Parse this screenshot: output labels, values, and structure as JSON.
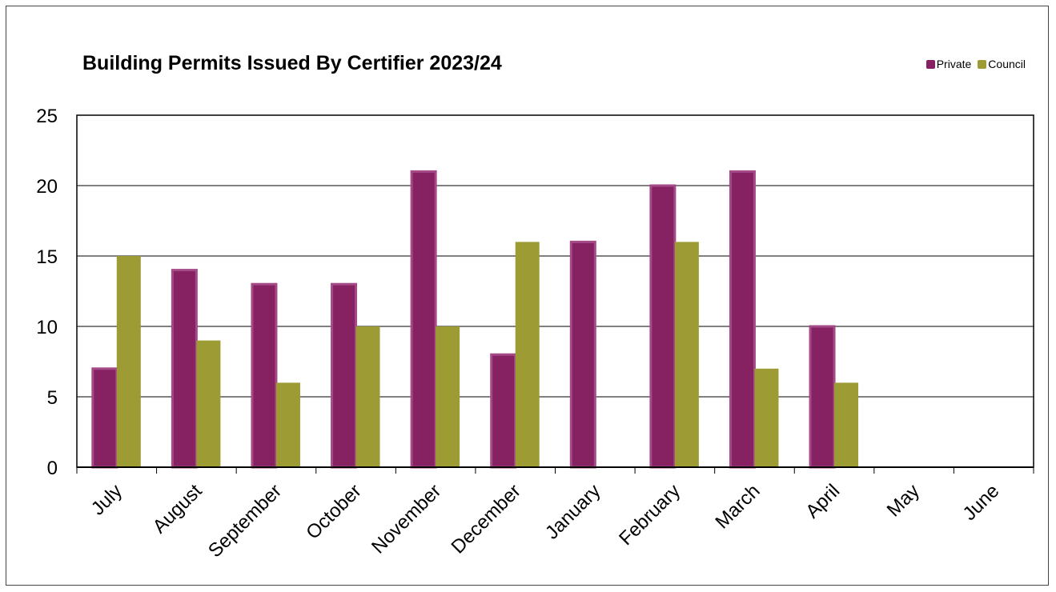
{
  "chart_data": {
    "type": "bar",
    "title": "Building Permits Issued By Certifier 2023/24",
    "xlabel": "",
    "ylabel": "",
    "categories": [
      "July",
      "August",
      "September",
      "October",
      "November",
      "December",
      "January",
      "February",
      "March",
      "April",
      "May",
      "June"
    ],
    "series": [
      {
        "name": "Private",
        "color": "#862262",
        "values": [
          7,
          14,
          13,
          13,
          21,
          8,
          16,
          20,
          21,
          10,
          0,
          0
        ]
      },
      {
        "name": "Council",
        "color": "#9C9B34",
        "values": [
          15,
          9,
          6,
          10,
          10,
          16,
          0,
          16,
          7,
          6,
          0,
          0
        ]
      }
    ],
    "ylim": [
      0,
      25
    ],
    "yticks": [
      0,
      5,
      10,
      15,
      20,
      25
    ],
    "grid": true,
    "legend_position": "top-right"
  }
}
